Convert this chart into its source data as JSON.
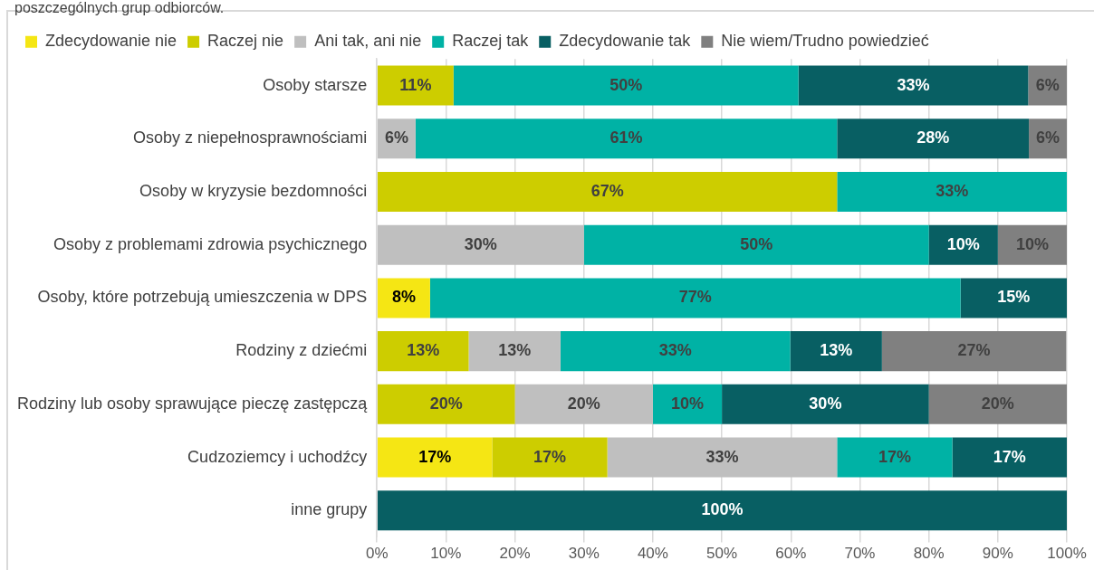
{
  "chart_data": {
    "type": "bar",
    "orientation": "horizontal",
    "stacked": true,
    "title": "poszczególnych grup odbiorców.",
    "categories": [
      "Osoby starsze",
      "Osoby z niepełnosprawnościami",
      "Osoby w kryzysie bezdomności",
      "Osoby z problemami zdrowia psychicznego",
      "Osoby, które potrzebują umieszczenia w DPS",
      "Rodziny z dziećmi",
      "Rodziny lub osoby sprawujące pieczę zastępczą",
      "Cudzoziemcy i uchodźcy",
      "inne grupy"
    ],
    "series": [
      {
        "name": "Zdecydowanie nie",
        "color": "#f5e614",
        "values": [
          null,
          null,
          null,
          null,
          7.7,
          null,
          null,
          16.7,
          null
        ],
        "value_labels": [
          null,
          null,
          null,
          null,
          "8%",
          null,
          null,
          "17%",
          null
        ]
      },
      {
        "name": "Raczej nie",
        "color": "#cdcd00",
        "values": [
          11.1,
          null,
          66.7,
          null,
          null,
          13.3,
          20,
          16.7,
          null
        ],
        "value_labels": [
          "11%",
          null,
          "67%",
          null,
          null,
          "13%",
          "20%",
          "17%",
          null
        ]
      },
      {
        "name": "Ani tak, ani nie",
        "color": "#bfbfbf",
        "values": [
          null,
          5.6,
          null,
          30,
          null,
          13.3,
          20,
          33.3,
          null
        ],
        "value_labels": [
          null,
          "6%",
          null,
          "30%",
          null,
          "13%",
          "20%",
          "33%",
          null
        ]
      },
      {
        "name": "Raczej tak",
        "color": "#00b2a5",
        "values": [
          50,
          61.1,
          33.3,
          50,
          76.9,
          33.3,
          10,
          16.7,
          null
        ],
        "value_labels": [
          "50%",
          "61%",
          "33%",
          "50%",
          "77%",
          "33%",
          "10%",
          "17%",
          null
        ]
      },
      {
        "name": "Zdecydowanie tak",
        "color": "#085f63",
        "values": [
          33.3,
          27.8,
          null,
          10,
          15.4,
          13.3,
          30,
          16.6,
          100
        ],
        "value_labels": [
          "33%",
          "28%",
          null,
          "10%",
          "15%",
          "13%",
          "30%",
          "17%",
          "100%"
        ]
      },
      {
        "name": "Nie wiem/Trudno powiedzieć",
        "color": "#808080",
        "values": [
          5.6,
          5.5,
          null,
          10,
          null,
          26.7,
          20,
          null,
          null
        ],
        "value_labels": [
          "6%",
          "6%",
          null,
          "10%",
          null,
          "27%",
          "20%",
          null,
          null
        ]
      }
    ],
    "xlim": [
      0,
      100
    ],
    "xticks": [
      {
        "value": 0,
        "label": "0%"
      },
      {
        "value": 10,
        "label": "10%"
      },
      {
        "value": 20,
        "label": "20%"
      },
      {
        "value": 30,
        "label": "30%"
      },
      {
        "value": 40,
        "label": "40%"
      },
      {
        "value": 50,
        "label": "50%"
      },
      {
        "value": 60,
        "label": "60%"
      },
      {
        "value": 70,
        "label": "70%"
      },
      {
        "value": 80,
        "label": "80%"
      },
      {
        "value": 90,
        "label": "90%"
      },
      {
        "value": 100,
        "label": "100%"
      }
    ],
    "grid": "x",
    "legend": "top"
  }
}
